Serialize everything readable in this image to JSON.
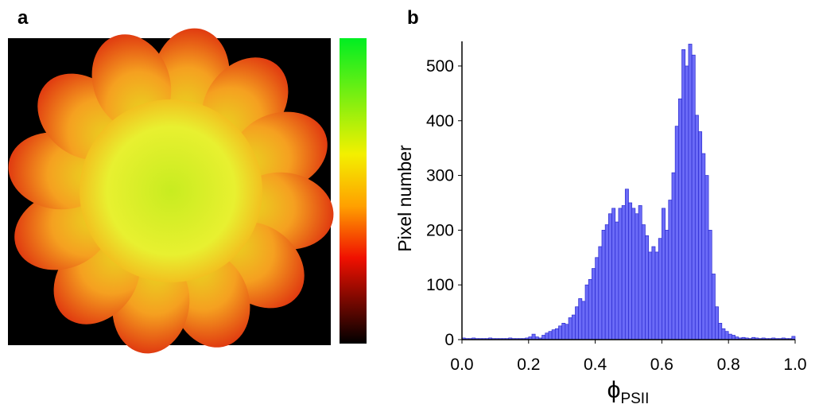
{
  "panel_labels": [
    "a",
    "b"
  ],
  "chart_data": {
    "type": "histogram",
    "ylabel": "Pixel number",
    "xlabel": {
      "symbol": "ϕ",
      "subscript": "PSII"
    },
    "color": "#6b6bf7",
    "edgecolor": "#2b2bd0",
    "bins": [
      0,
      0.01,
      0.02,
      0.03,
      0.04,
      0.05,
      0.06,
      0.07,
      0.08,
      0.09,
      0.1,
      0.11,
      0.12,
      0.13,
      0.14,
      0.15,
      0.16,
      0.17,
      0.18,
      0.19,
      0.2,
      0.21,
      0.22,
      0.23,
      0.24,
      0.25,
      0.26,
      0.27,
      0.28,
      0.29,
      0.3,
      0.31,
      0.32,
      0.33,
      0.34,
      0.35,
      0.36,
      0.37,
      0.38,
      0.39,
      0.4,
      0.41,
      0.42,
      0.43,
      0.44,
      0.45,
      0.46,
      0.47,
      0.48,
      0.49,
      0.5,
      0.51,
      0.52,
      0.53,
      0.54,
      0.55,
      0.56,
      0.57,
      0.58,
      0.59,
      0.6,
      0.61,
      0.62,
      0.63,
      0.64,
      0.65,
      0.66,
      0.67,
      0.68,
      0.69,
      0.7,
      0.71,
      0.72,
      0.73,
      0.74,
      0.75,
      0.76,
      0.77,
      0.78,
      0.79,
      0.8,
      0.81,
      0.82,
      0.83,
      0.84,
      0.85,
      0.86,
      0.87,
      0.88,
      0.89,
      0.9,
      0.91,
      0.92,
      0.93,
      0.94,
      0.95,
      0.96,
      0.97,
      0.98,
      0.99,
      1
    ],
    "counts": [
      3,
      2,
      2,
      3,
      2,
      2,
      2,
      2,
      3,
      2,
      2,
      2,
      2,
      2,
      3,
      2,
      2,
      2,
      2,
      3,
      5,
      10,
      5,
      3,
      8,
      12,
      15,
      18,
      20,
      25,
      30,
      28,
      40,
      45,
      60,
      75,
      70,
      100,
      110,
      130,
      150,
      170,
      200,
      210,
      230,
      240,
      215,
      240,
      245,
      275,
      250,
      240,
      230,
      245,
      210,
      190,
      160,
      170,
      160,
      185,
      240,
      200,
      255,
      305,
      390,
      440,
      530,
      500,
      540,
      520,
      410,
      380,
      340,
      300,
      200,
      120,
      60,
      30,
      20,
      15,
      10,
      8,
      5,
      3,
      4,
      3,
      2,
      4,
      3,
      2,
      3,
      2,
      2,
      3,
      2,
      2,
      3,
      2,
      2,
      6
    ],
    "xlim": [
      0,
      1
    ],
    "ylim": [
      0,
      545
    ],
    "xticks": [
      {
        "value": 0,
        "label": "0.0"
      },
      0.2,
      0.4,
      0.6,
      0.8,
      {
        "value": 1,
        "label": "1.0"
      }
    ],
    "yticks": [
      0,
      100,
      200,
      300,
      400,
      500
    ]
  }
}
